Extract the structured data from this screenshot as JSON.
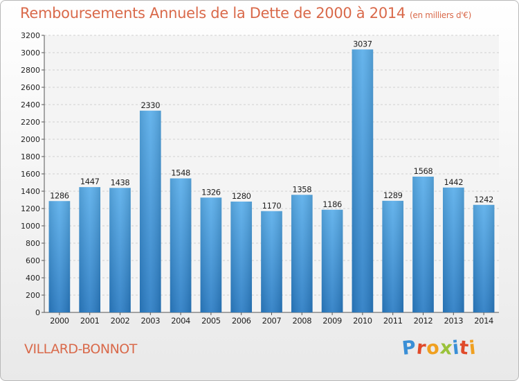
{
  "title": "Remboursements Annuels de la Dette de 2000 à 2014",
  "unit_note": "(en milliers d'€)",
  "city": "VILLARD-BONNOT",
  "logo": {
    "letters": [
      "P",
      "r",
      "o",
      "x",
      "i",
      "t",
      "i"
    ],
    "colors": [
      "#3a8fd6",
      "#e04a2a",
      "#f0a020",
      "#9ac23a",
      "#3a8fd6",
      "#e04a2a",
      "#f0a020"
    ]
  },
  "colors": {
    "bar_light": "#5aaeea",
    "bar_dark": "#2a7cc4",
    "grid": "#cfcfcf",
    "text": "#222222",
    "accent": "#d9694a"
  },
  "chart_data": {
    "type": "bar",
    "title": "Remboursements Annuels de la Dette de 2000 à 2014",
    "xlabel": "",
    "ylabel": "",
    "ylim": [
      0,
      3200
    ],
    "yticks": [
      0,
      200,
      400,
      600,
      800,
      1000,
      1200,
      1400,
      1600,
      1800,
      2000,
      2200,
      2400,
      2600,
      2800,
      3000,
      3200
    ],
    "grid": true,
    "categories": [
      "2000",
      "2001",
      "2002",
      "2003",
      "2004",
      "2005",
      "2006",
      "2007",
      "2008",
      "2009",
      "2010",
      "2011",
      "2012",
      "2013",
      "2014"
    ],
    "values": [
      1286,
      1447,
      1438,
      2330,
      1548,
      1326,
      1280,
      1170,
      1358,
      1186,
      3037,
      1289,
      1568,
      1442,
      1242
    ]
  }
}
